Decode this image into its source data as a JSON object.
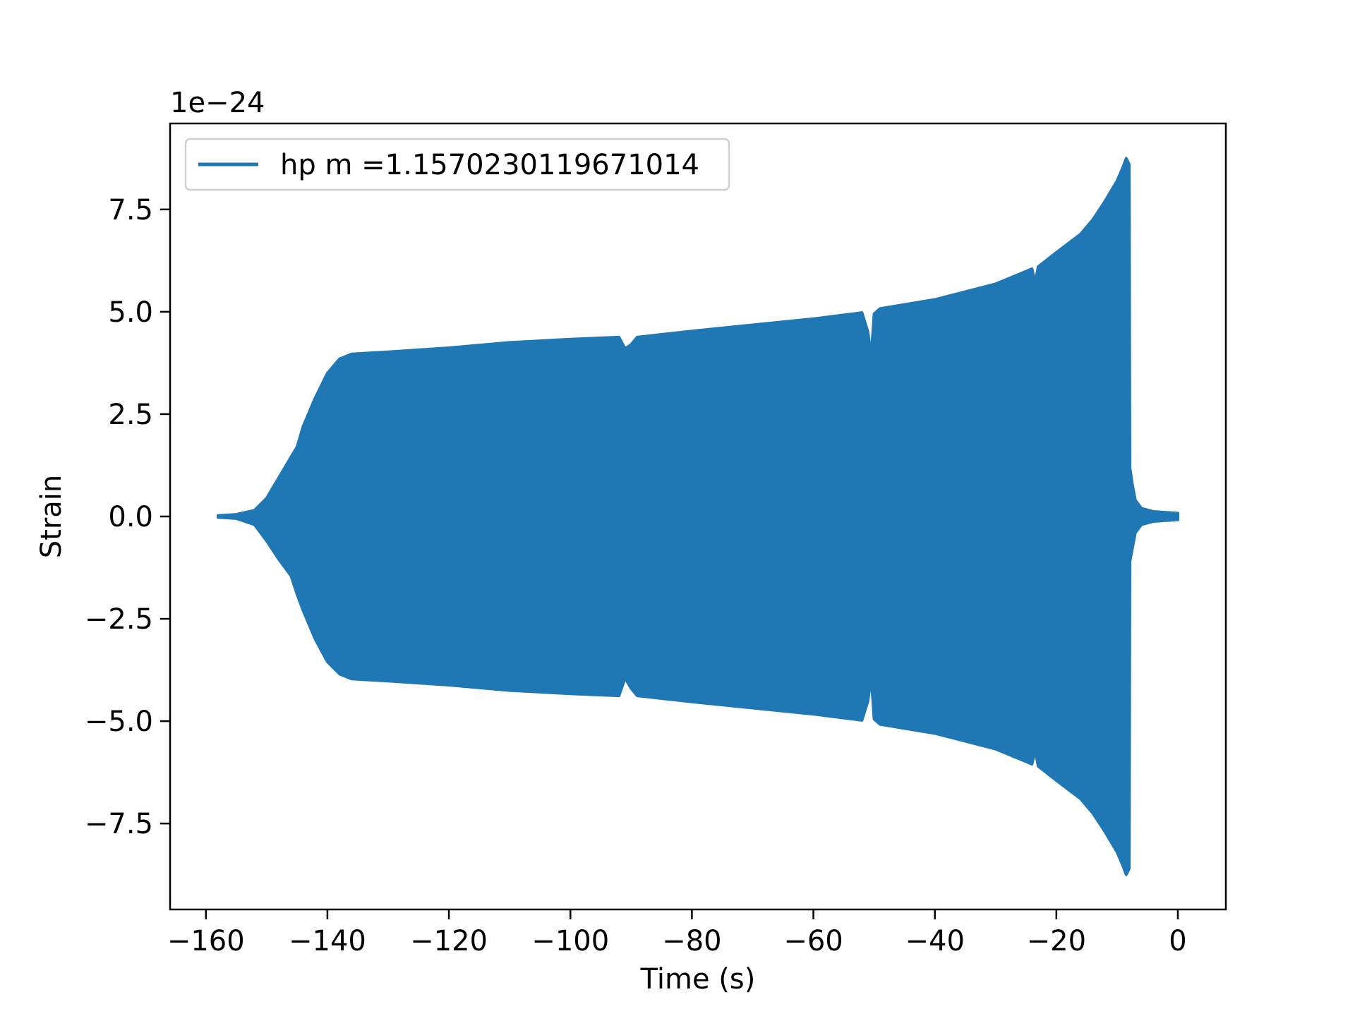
{
  "chart_data": {
    "type": "area",
    "title": "",
    "xlabel": "Time (s)",
    "ylabel": "Strain",
    "offset_text": "1e−24",
    "xlim": [
      -165.9,
      7.9
    ],
    "ylim": [
      -9.6,
      9.6
    ],
    "grid": false,
    "legend_placement": "upper left",
    "xticks": [
      -160,
      -140,
      -120,
      -100,
      -80,
      -60,
      -40,
      -20,
      0
    ],
    "xtick_labels": [
      "−160",
      "−140",
      "−120",
      "−100",
      "−80",
      "−60",
      "−40",
      "−20",
      "0"
    ],
    "yticks": [
      -7.5,
      -5.0,
      -2.5,
      0.0,
      2.5,
      5.0,
      7.5
    ],
    "ytick_labels": [
      "−7.5",
      "−5.0",
      "−2.5",
      "0.0",
      "2.5",
      "5.0",
      "7.5"
    ],
    "series": [
      {
        "name": "hp m =1.1570230119671014",
        "color": "#1f77b4",
        "envelope_upper": [
          [
            -158,
            0.02
          ],
          [
            -155,
            0.05
          ],
          [
            -152,
            0.15
          ],
          [
            -150,
            0.45
          ],
          [
            -148,
            0.95
          ],
          [
            -146,
            1.45
          ],
          [
            -145,
            1.7
          ],
          [
            -144,
            2.2
          ],
          [
            -142,
            2.9
          ],
          [
            -140,
            3.5
          ],
          [
            -138,
            3.85
          ],
          [
            -136,
            3.97
          ],
          [
            -130,
            4.02
          ],
          [
            -120,
            4.12
          ],
          [
            -110,
            4.25
          ],
          [
            -100,
            4.33
          ],
          [
            -92,
            4.38
          ],
          [
            -91,
            4.1
          ],
          [
            -90,
            4.2
          ],
          [
            -89,
            4.38
          ],
          [
            -80,
            4.53
          ],
          [
            -70,
            4.68
          ],
          [
            -60,
            4.83
          ],
          [
            -52,
            4.98
          ],
          [
            -51,
            4.5
          ],
          [
            -50.5,
            3.9
          ],
          [
            -50,
            4.95
          ],
          [
            -49,
            5.08
          ],
          [
            -40,
            5.3
          ],
          [
            -30,
            5.68
          ],
          [
            -24,
            6.05
          ],
          [
            -23.5,
            5.7
          ],
          [
            -23,
            6.1
          ],
          [
            -20,
            6.45
          ],
          [
            -16,
            6.9
          ],
          [
            -14,
            7.25
          ],
          [
            -12,
            7.7
          ],
          [
            -10,
            8.2
          ],
          [
            -9,
            8.55
          ],
          [
            -8.5,
            8.75
          ],
          [
            -8,
            8.6
          ],
          [
            -7.9,
            1.2
          ],
          [
            -7.5,
            0.8
          ],
          [
            -7,
            0.4
          ],
          [
            -6,
            0.2
          ],
          [
            -4,
            0.12
          ],
          [
            0,
            0.08
          ]
        ],
        "envelope_lower": [
          [
            -158,
            -0.02
          ],
          [
            -155,
            -0.05
          ],
          [
            -152,
            -0.2
          ],
          [
            -150,
            -0.6
          ],
          [
            -148,
            -1.05
          ],
          [
            -146,
            -1.45
          ],
          [
            -145,
            -1.9
          ],
          [
            -144,
            -2.3
          ],
          [
            -142,
            -3.0
          ],
          [
            -140,
            -3.55
          ],
          [
            -138,
            -3.85
          ],
          [
            -136,
            -3.97
          ],
          [
            -130,
            -4.02
          ],
          [
            -120,
            -4.12
          ],
          [
            -110,
            -4.25
          ],
          [
            -100,
            -4.33
          ],
          [
            -92,
            -4.38
          ],
          [
            -91,
            -3.95
          ],
          [
            -90,
            -4.2
          ],
          [
            -89,
            -4.38
          ],
          [
            -80,
            -4.53
          ],
          [
            -70,
            -4.68
          ],
          [
            -60,
            -4.83
          ],
          [
            -52,
            -4.98
          ],
          [
            -51,
            -4.5
          ],
          [
            -50.5,
            -3.9
          ],
          [
            -50,
            -4.95
          ],
          [
            -49,
            -5.08
          ],
          [
            -40,
            -5.3
          ],
          [
            -30,
            -5.68
          ],
          [
            -24,
            -6.05
          ],
          [
            -23.5,
            -5.7
          ],
          [
            -23,
            -6.1
          ],
          [
            -20,
            -6.45
          ],
          [
            -16,
            -6.9
          ],
          [
            -14,
            -7.25
          ],
          [
            -12,
            -7.7
          ],
          [
            -10,
            -8.2
          ],
          [
            -9,
            -8.55
          ],
          [
            -8.5,
            -8.75
          ],
          [
            -8,
            -8.6
          ],
          [
            -7.9,
            -1.1
          ],
          [
            -7.5,
            -0.8
          ],
          [
            -7,
            -0.4
          ],
          [
            -6,
            -0.2
          ],
          [
            -4,
            -0.12
          ],
          [
            0,
            -0.08
          ]
        ]
      }
    ]
  }
}
